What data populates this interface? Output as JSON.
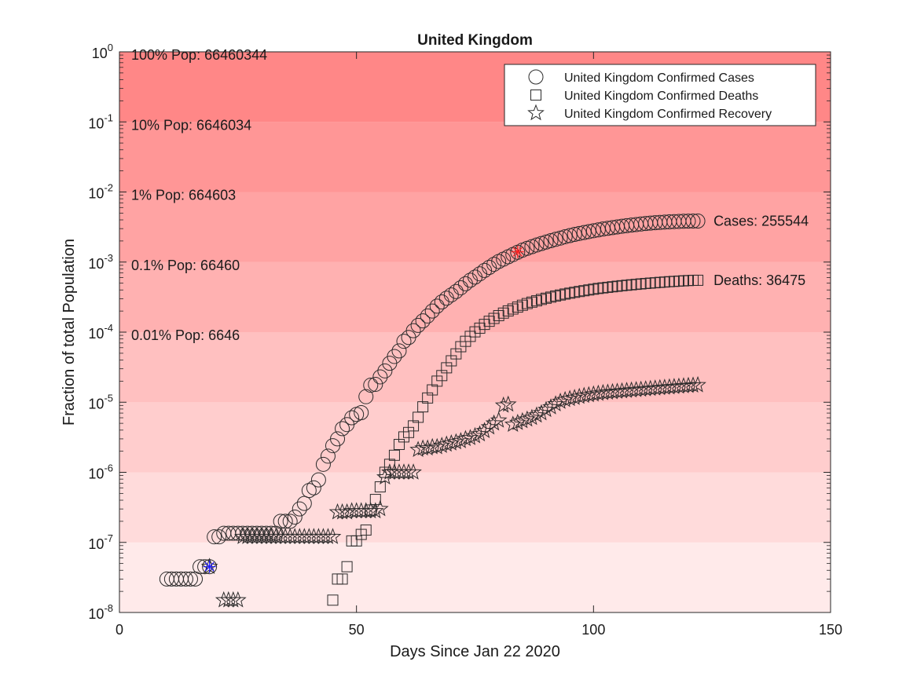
{
  "chart_data": {
    "type": "scatter",
    "title": "United Kingdom",
    "xlabel": "Days Since Jan 22 2020",
    "ylabel": "Fraction of total Population",
    "xlim": [
      0,
      150
    ],
    "ylim": [
      1e-08,
      1
    ],
    "yscale": "log",
    "x_ticks": [
      0,
      50,
      100,
      150
    ],
    "y_tick_exponents": [
      -8,
      -7,
      -6,
      -5,
      -4,
      -3,
      -2,
      -1,
      0
    ],
    "y_tick_base": "10",
    "grid": false,
    "legend_position": "top-right",
    "colors": {
      "band_base": "#ff5a5a",
      "marker_stroke": "#2b2b2b",
      "highlight_blue": "#1a1aff",
      "highlight_red": "#ff2020"
    },
    "population_bands": [
      {
        "label": "100% Pop: 66460344",
        "value": 1
      },
      {
        "label": "10% Pop: 6646034",
        "value": 0.1
      },
      {
        "label": "1% Pop: 664603",
        "value": 0.01
      },
      {
        "label": "0.1% Pop: 66460",
        "value": 0.001
      },
      {
        "label": "0.01% Pop: 6646",
        "value": 0.0001
      }
    ],
    "end_labels": [
      {
        "text": "Cases: 255544",
        "x": 122,
        "y": 0.00385
      },
      {
        "text": "Deaths: 36475",
        "x": 122,
        "y": 0.00055
      }
    ],
    "highlights": [
      {
        "marker": "asterisk",
        "color": "blue",
        "x": 19,
        "y": 4.5e-08
      },
      {
        "marker": "asterisk",
        "color": "red",
        "x": 84,
        "y": 0.0014
      }
    ],
    "series": [
      {
        "name": "United Kingdom Confirmed Cases",
        "marker": "circle",
        "points": [
          [
            10,
            3e-08
          ],
          [
            11,
            3e-08
          ],
          [
            12,
            3e-08
          ],
          [
            13,
            3e-08
          ],
          [
            14,
            3e-08
          ],
          [
            15,
            3e-08
          ],
          [
            16,
            3e-08
          ],
          [
            17,
            4.5e-08
          ],
          [
            18,
            4.5e-08
          ],
          [
            19,
            4.5e-08
          ],
          [
            20,
            1.2e-07
          ],
          [
            21,
            1.2e-07
          ],
          [
            22,
            1.35e-07
          ],
          [
            23,
            1.35e-07
          ],
          [
            24,
            1.35e-07
          ],
          [
            25,
            1.35e-07
          ],
          [
            26,
            1.35e-07
          ],
          [
            27,
            1.35e-07
          ],
          [
            28,
            1.35e-07
          ],
          [
            29,
            1.35e-07
          ],
          [
            30,
            1.35e-07
          ],
          [
            31,
            1.35e-07
          ],
          [
            32,
            1.35e-07
          ],
          [
            33,
            1.35e-07
          ],
          [
            34,
            2e-07
          ],
          [
            35,
            2e-07
          ],
          [
            36,
            2e-07
          ],
          [
            37,
            2.3e-07
          ],
          [
            38,
            3e-07
          ],
          [
            39,
            3.6e-07
          ],
          [
            40,
            5.5e-07
          ],
          [
            41,
            6e-07
          ],
          [
            42,
            7.8e-07
          ],
          [
            43,
            1.3e-06
          ],
          [
            44,
            1.7e-06
          ],
          [
            45,
            2.4e-06
          ],
          [
            46,
            3e-06
          ],
          [
            47,
            4.2e-06
          ],
          [
            48,
            4.8e-06
          ],
          [
            49,
            6e-06
          ],
          [
            50,
            6.7e-06
          ],
          [
            51,
            7.1e-06
          ],
          [
            52,
            1.2e-05
          ],
          [
            53,
            1.75e-05
          ],
          [
            54,
            1.8e-05
          ],
          [
            55,
            2.3e-05
          ],
          [
            56,
            2.8e-05
          ],
          [
            57,
            3.6e-05
          ],
          [
            58,
            4.5e-05
          ],
          [
            59,
            5.4e-05
          ],
          [
            60,
            7.4e-05
          ],
          [
            61,
            8.4e-05
          ],
          [
            62,
            0.000105
          ],
          [
            63,
            0.000125
          ],
          [
            64,
            0.000145
          ],
          [
            65,
            0.00017
          ],
          [
            66,
            0.0002
          ],
          [
            67,
            0.000235
          ],
          [
            68,
            0.00027
          ],
          [
            69,
            0.000305
          ],
          [
            70,
            0.00034
          ],
          [
            71,
            0.00038
          ],
          [
            72,
            0.00043
          ],
          [
            73,
            0.00049
          ],
          [
            74,
            0.00055
          ],
          [
            75,
            0.00061
          ],
          [
            76,
            0.00068
          ],
          [
            77,
            0.00076
          ],
          [
            78,
            0.00084
          ],
          [
            79,
            0.00093
          ],
          [
            80,
            0.00102
          ],
          [
            81,
            0.0011
          ],
          [
            82,
            0.00119
          ],
          [
            83,
            0.00128
          ],
          [
            84,
            0.00138
          ],
          [
            85,
            0.00148
          ],
          [
            86,
            0.00157
          ],
          [
            87,
            0.00166
          ],
          [
            88,
            0.00175
          ],
          [
            89,
            0.00184
          ],
          [
            90,
            0.00193
          ],
          [
            91,
            0.00202
          ],
          [
            92,
            0.00211
          ],
          [
            93,
            0.0022
          ],
          [
            94,
            0.0023
          ],
          [
            95,
            0.00239
          ],
          [
            96,
            0.00248
          ],
          [
            97,
            0.00256
          ],
          [
            98,
            0.00264
          ],
          [
            99,
            0.00272
          ],
          [
            100,
            0.0028
          ],
          [
            101,
            0.00288
          ],
          [
            102,
            0.00296
          ],
          [
            103,
            0.00303
          ],
          [
            104,
            0.0031
          ],
          [
            105,
            0.00317
          ],
          [
            106,
            0.00324
          ],
          [
            107,
            0.00331
          ],
          [
            108,
            0.00337
          ],
          [
            109,
            0.00343
          ],
          [
            110,
            0.00349
          ],
          [
            111,
            0.00355
          ],
          [
            112,
            0.0036
          ],
          [
            113,
            0.00364
          ],
          [
            114,
            0.00368
          ],
          [
            115,
            0.00372
          ],
          [
            116,
            0.00375
          ],
          [
            117,
            0.00378
          ],
          [
            118,
            0.0038
          ],
          [
            119,
            0.00382
          ],
          [
            120,
            0.00384
          ],
          [
            121,
            0.00385
          ],
          [
            122,
            0.00385
          ]
        ]
      },
      {
        "name": "United Kingdom Confirmed Deaths",
        "marker": "square",
        "points": [
          [
            45,
            1.5e-08
          ],
          [
            46,
            3e-08
          ],
          [
            47,
            3e-08
          ],
          [
            48,
            4.5e-08
          ],
          [
            49,
            1.05e-07
          ],
          [
            50,
            1.05e-07
          ],
          [
            51,
            1.3e-07
          ],
          [
            52,
            1.5e-07
          ],
          [
            53,
            2.9e-07
          ],
          [
            54,
            4.1e-07
          ],
          [
            55,
            6.2e-07
          ],
          [
            56,
            1e-06
          ],
          [
            57,
            1.3e-06
          ],
          [
            58,
            1.75e-06
          ],
          [
            59,
            2.5e-06
          ],
          [
            60,
            3.2e-06
          ],
          [
            61,
            3.7e-06
          ],
          [
            62,
            4.6e-06
          ],
          [
            63,
            6.1e-06
          ],
          [
            64,
            8.6e-06
          ],
          [
            65,
            1.15e-05
          ],
          [
            66,
            1.5e-05
          ],
          [
            67,
            2e-05
          ],
          [
            68,
            2.4e-05
          ],
          [
            69,
            3.1e-05
          ],
          [
            70,
            3.9e-05
          ],
          [
            71,
            4.9e-05
          ],
          [
            72,
            6.2e-05
          ],
          [
            73,
            7.4e-05
          ],
          [
            74,
            8.7e-05
          ],
          [
            75,
            0.000101
          ],
          [
            76,
            0.000114
          ],
          [
            77,
            0.000129
          ],
          [
            78,
            0.000143
          ],
          [
            79,
            0.000157
          ],
          [
            80,
            0.000172
          ],
          [
            81,
            0.000187
          ],
          [
            82,
            0.000201
          ],
          [
            83,
            0.000214
          ],
          [
            84,
            0.000228
          ],
          [
            85,
            0.000242
          ],
          [
            86,
            0.000256
          ],
          [
            87,
            0.000268
          ],
          [
            88,
            0.00028
          ],
          [
            89,
            0.000293
          ],
          [
            90,
            0.000305
          ],
          [
            91,
            0.000316
          ],
          [
            92,
            0.000328
          ],
          [
            93,
            0.000339
          ],
          [
            94,
            0.00035
          ],
          [
            95,
            0.00036
          ],
          [
            96,
            0.00037
          ],
          [
            97,
            0.00038
          ],
          [
            98,
            0.00039
          ],
          [
            99,
            0.0004
          ],
          [
            100,
            0.00041
          ],
          [
            101,
            0.00042
          ],
          [
            102,
            0.000428
          ],
          [
            103,
            0.000436
          ],
          [
            104,
            0.000444
          ],
          [
            105,
            0.000452
          ],
          [
            106,
            0.00046
          ],
          [
            107,
            0.000467
          ],
          [
            108,
            0.000474
          ],
          [
            109,
            0.000481
          ],
          [
            110,
            0.000488
          ],
          [
            111,
            0.000495
          ],
          [
            112,
            0.000501
          ],
          [
            113,
            0.000507
          ],
          [
            114,
            0.000513
          ],
          [
            115,
            0.000519
          ],
          [
            116,
            0.000525
          ],
          [
            117,
            0.00053
          ],
          [
            118,
            0.000535
          ],
          [
            119,
            0.00054
          ],
          [
            120,
            0.000545
          ],
          [
            121,
            0.000549
          ],
          [
            122,
            0.00055
          ]
        ]
      },
      {
        "name": "United Kingdom Confirmed Recovery",
        "marker": "star",
        "points": [
          [
            19,
            4.5e-08
          ],
          [
            22,
            1.5e-08
          ],
          [
            23,
            1.5e-08
          ],
          [
            24,
            1.5e-08
          ],
          [
            25,
            1.5e-08
          ],
          [
            26,
            1.2e-07
          ],
          [
            27,
            1.2e-07
          ],
          [
            28,
            1.2e-07
          ],
          [
            29,
            1.2e-07
          ],
          [
            30,
            1.2e-07
          ],
          [
            31,
            1.2e-07
          ],
          [
            32,
            1.2e-07
          ],
          [
            33,
            1.2e-07
          ],
          [
            34,
            1.2e-07
          ],
          [
            35,
            1.2e-07
          ],
          [
            36,
            1.2e-07
          ],
          [
            37,
            1.2e-07
          ],
          [
            38,
            1.2e-07
          ],
          [
            39,
            1.2e-07
          ],
          [
            40,
            1.2e-07
          ],
          [
            41,
            1.2e-07
          ],
          [
            42,
            1.2e-07
          ],
          [
            43,
            1.2e-07
          ],
          [
            44,
            1.2e-07
          ],
          [
            45,
            1.2e-07
          ],
          [
            46,
            2.7e-07
          ],
          [
            47,
            2.7e-07
          ],
          [
            48,
            2.7e-07
          ],
          [
            49,
            2.8e-07
          ],
          [
            50,
            2.8e-07
          ],
          [
            51,
            2.8e-07
          ],
          [
            52,
            2.8e-07
          ],
          [
            53,
            2.8e-07
          ],
          [
            54,
            2.8e-07
          ],
          [
            55,
            3e-07
          ],
          [
            56,
            8.5e-07
          ],
          [
            57,
            1e-06
          ],
          [
            58,
            1e-06
          ],
          [
            59,
            1e-06
          ],
          [
            60,
            1e-06
          ],
          [
            61,
            1e-06
          ],
          [
            62,
            1e-06
          ],
          [
            63,
            2.1e-06
          ],
          [
            64,
            2.2e-06
          ],
          [
            65,
            2.2e-06
          ],
          [
            66,
            2.3e-06
          ],
          [
            67,
            2.3e-06
          ],
          [
            68,
            2.4e-06
          ],
          [
            69,
            2.5e-06
          ],
          [
            70,
            2.6e-06
          ],
          [
            71,
            2.7e-06
          ],
          [
            72,
            2.8e-06
          ],
          [
            73,
            3e-06
          ],
          [
            74,
            3.1e-06
          ],
          [
            75,
            3.3e-06
          ],
          [
            76,
            3.5e-06
          ],
          [
            77,
            3.9e-06
          ],
          [
            78,
            4.4e-06
          ],
          [
            79,
            5e-06
          ],
          [
            80,
            5.5e-06
          ],
          [
            81,
            9e-06
          ],
          [
            82,
            9.3e-06
          ],
          [
            83,
            4.8e-06
          ],
          [
            84,
            5.1e-06
          ],
          [
            85,
            5.4e-06
          ],
          [
            86,
            5.7e-06
          ],
          [
            87,
            6e-06
          ],
          [
            88,
            6.5e-06
          ],
          [
            89,
            7e-06
          ],
          [
            90,
            7.8e-06
          ],
          [
            91,
            8.5e-06
          ],
          [
            92,
            9.4e-06
          ],
          [
            93,
            1.02e-05
          ],
          [
            94,
            1.08e-05
          ],
          [
            95,
            1.12e-05
          ],
          [
            96,
            1.16e-05
          ],
          [
            97,
            1.2e-05
          ],
          [
            98,
            1.24e-05
          ],
          [
            99,
            1.27e-05
          ],
          [
            100,
            1.3e-05
          ],
          [
            101,
            1.33e-05
          ],
          [
            102,
            1.36e-05
          ],
          [
            103,
            1.38e-05
          ],
          [
            104,
            1.4e-05
          ],
          [
            105,
            1.42e-05
          ],
          [
            106,
            1.44e-05
          ],
          [
            107,
            1.46e-05
          ],
          [
            108,
            1.48e-05
          ],
          [
            109,
            1.5e-05
          ],
          [
            110,
            1.52e-05
          ],
          [
            111,
            1.54e-05
          ],
          [
            112,
            1.56e-05
          ],
          [
            113,
            1.58e-05
          ],
          [
            114,
            1.6e-05
          ],
          [
            115,
            1.62e-05
          ],
          [
            116,
            1.64e-05
          ],
          [
            117,
            1.66e-05
          ],
          [
            118,
            1.68e-05
          ],
          [
            119,
            1.7e-05
          ],
          [
            120,
            1.72e-05
          ],
          [
            121,
            1.74e-05
          ],
          [
            122,
            1.76e-05
          ]
        ]
      }
    ]
  }
}
